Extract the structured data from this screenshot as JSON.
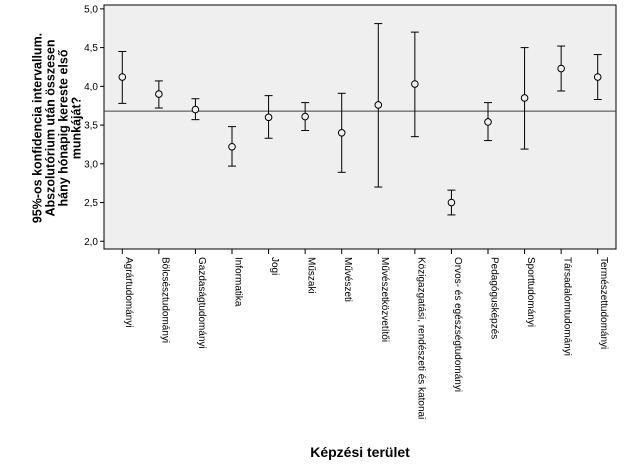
{
  "chart_data": {
    "type": "errorbar",
    "xlabel": "Képzési terület",
    "ylabel_lines": [
      "95%-os konfidencia intervallum.",
      "Abszolutórium után összesen",
      "hány hónapig kereste első",
      "munkáját?"
    ],
    "ylim": [
      1.9,
      5.05
    ],
    "yticks": [
      2.0,
      2.5,
      3.0,
      3.5,
      4.0,
      4.5,
      5.0
    ],
    "ytick_labels": [
      "2,0",
      "2,5",
      "3,0",
      "3,5",
      "4,0",
      "4,5",
      "5,0"
    ],
    "reference_line": 3.68,
    "categories": [
      "Agrártudományi",
      "Bölcsésztudományi",
      "Gazdaságtudományi",
      "Informatika",
      "Jogi",
      "Műszaki",
      "Művészeti",
      "Művészetközvetítői",
      "Közigazgatási, rendészeti és katonai",
      "Orvos- és egészségtudományi",
      "Pedagógusképzés",
      "Sporttudományi",
      "Társadalomtudományi",
      "Természettudományi"
    ],
    "mean": [
      4.12,
      3.9,
      3.7,
      3.22,
      3.6,
      3.61,
      3.4,
      3.76,
      4.03,
      2.5,
      3.54,
      3.85,
      4.23,
      4.12
    ],
    "lower": [
      3.78,
      3.72,
      3.57,
      2.97,
      3.33,
      3.43,
      2.89,
      2.7,
      3.35,
      2.34,
      3.3,
      3.19,
      3.94,
      3.83
    ],
    "upper": [
      4.45,
      4.07,
      3.84,
      3.48,
      3.88,
      3.79,
      3.91,
      4.81,
      4.7,
      2.66,
      3.79,
      4.5,
      4.52,
      4.41
    ],
    "grid": false,
    "plot_background": "#efefef",
    "line_color": "#000000"
  }
}
